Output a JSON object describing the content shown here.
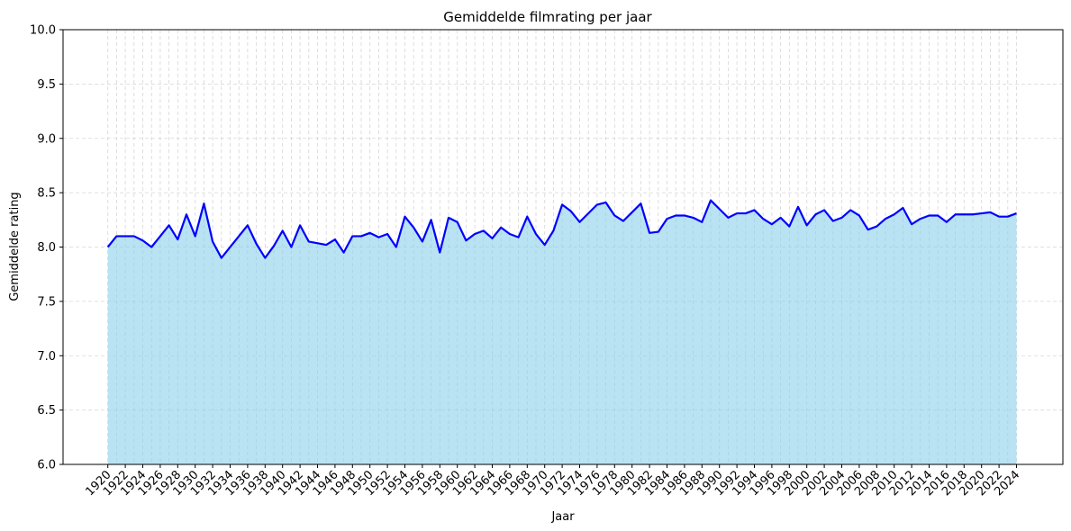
{
  "chart_data": {
    "type": "area",
    "title": "Gemiddelde filmrating per jaar",
    "xlabel": "Jaar",
    "ylabel": "Gemiddelde rating",
    "ylim": [
      6.0,
      10.0
    ],
    "xlim": [
      1920,
      2024
    ],
    "grid": true,
    "y_ticks": [
      "6.0",
      "6.5",
      "7.0",
      "7.5",
      "8.0",
      "8.5",
      "9.0",
      "9.5",
      "10.0"
    ],
    "x_ticks": [
      "1920",
      "1922",
      "1924",
      "1926",
      "1928",
      "1930",
      "1932",
      "1934",
      "1936",
      "1938",
      "1940",
      "1942",
      "1944",
      "1946",
      "1948",
      "1950",
      "1952",
      "1954",
      "1956",
      "1958",
      "1960",
      "1962",
      "1964",
      "1966",
      "1968",
      "1970",
      "1972",
      "1974",
      "1976",
      "1978",
      "1980",
      "1982",
      "1984",
      "1986",
      "1988",
      "1990",
      "1992",
      "1994",
      "1996",
      "1998",
      "2000",
      "2002",
      "2004",
      "2006",
      "2008",
      "2010",
      "2012",
      "2014",
      "2016",
      "2018",
      "2020",
      "2022",
      "2024"
    ],
    "colors": {
      "line": "#0000ff",
      "fill": "#87ceeb"
    },
    "x": [
      1920,
      1921,
      1922,
      1923,
      1924,
      1925,
      1926,
      1927,
      1928,
      1929,
      1930,
      1931,
      1932,
      1933,
      1936,
      1937,
      1938,
      1939,
      1940,
      1941,
      1942,
      1943,
      1945,
      1946,
      1947,
      1948,
      1949,
      1950,
      1951,
      1952,
      1953,
      1954,
      1955,
      1956,
      1957,
      1958,
      1959,
      1960,
      1961,
      1962,
      1963,
      1964,
      1965,
      1966,
      1967,
      1968,
      1969,
      1970,
      1971,
      1972,
      1973,
      1974,
      1976,
      1977,
      1978,
      1979,
      1981,
      1982,
      1983,
      1984,
      1985,
      1986,
      1987,
      1988,
      1989,
      1990,
      1991,
      1992,
      1993,
      1994,
      1995,
      1996,
      1997,
      1998,
      1999,
      2000,
      2001,
      2002,
      2003,
      2004,
      2005,
      2006,
      2007,
      2008,
      2009,
      2010,
      2011,
      2012,
      2013,
      2014,
      2015,
      2016,
      2017,
      2018,
      2019,
      2020,
      2021,
      2022,
      2023,
      2024
    ],
    "series": [
      {
        "values": [
          8.0,
          8.1,
          8.1,
          8.1,
          8.06,
          8.0,
          8.1,
          8.2,
          8.07,
          8.3,
          8.1,
          8.4,
          8.05,
          7.9,
          8.2,
          8.03,
          7.9,
          8.01,
          8.15,
          8.0,
          8.2,
          8.05,
          8.02,
          8.07,
          7.95,
          8.1,
          8.1,
          8.13,
          8.09,
          8.12,
          8.0,
          8.28,
          8.18,
          8.05,
          8.25,
          7.95,
          8.27,
          8.23,
          8.06,
          8.12,
          8.15,
          8.08,
          8.18,
          8.12,
          8.09,
          8.28,
          8.12,
          8.02,
          8.15,
          8.39,
          8.33,
          8.23,
          8.39,
          8.41,
          8.29,
          8.24,
          8.4,
          8.13,
          8.14,
          8.26,
          8.29,
          8.29,
          8.27,
          8.23,
          8.43,
          8.35,
          8.27,
          8.31,
          8.31,
          8.34,
          8.26,
          8.21,
          8.27,
          8.19,
          8.37,
          8.2,
          8.3,
          8.34,
          8.24,
          8.27,
          8.34,
          8.29,
          8.16,
          8.19,
          8.26,
          8.3,
          8.36,
          8.21,
          8.26,
          8.29,
          8.29,
          8.23,
          8.3,
          8.3,
          8.3,
          8.31,
          8.32,
          8.28,
          8.28,
          8.31
        ]
      }
    ]
  }
}
